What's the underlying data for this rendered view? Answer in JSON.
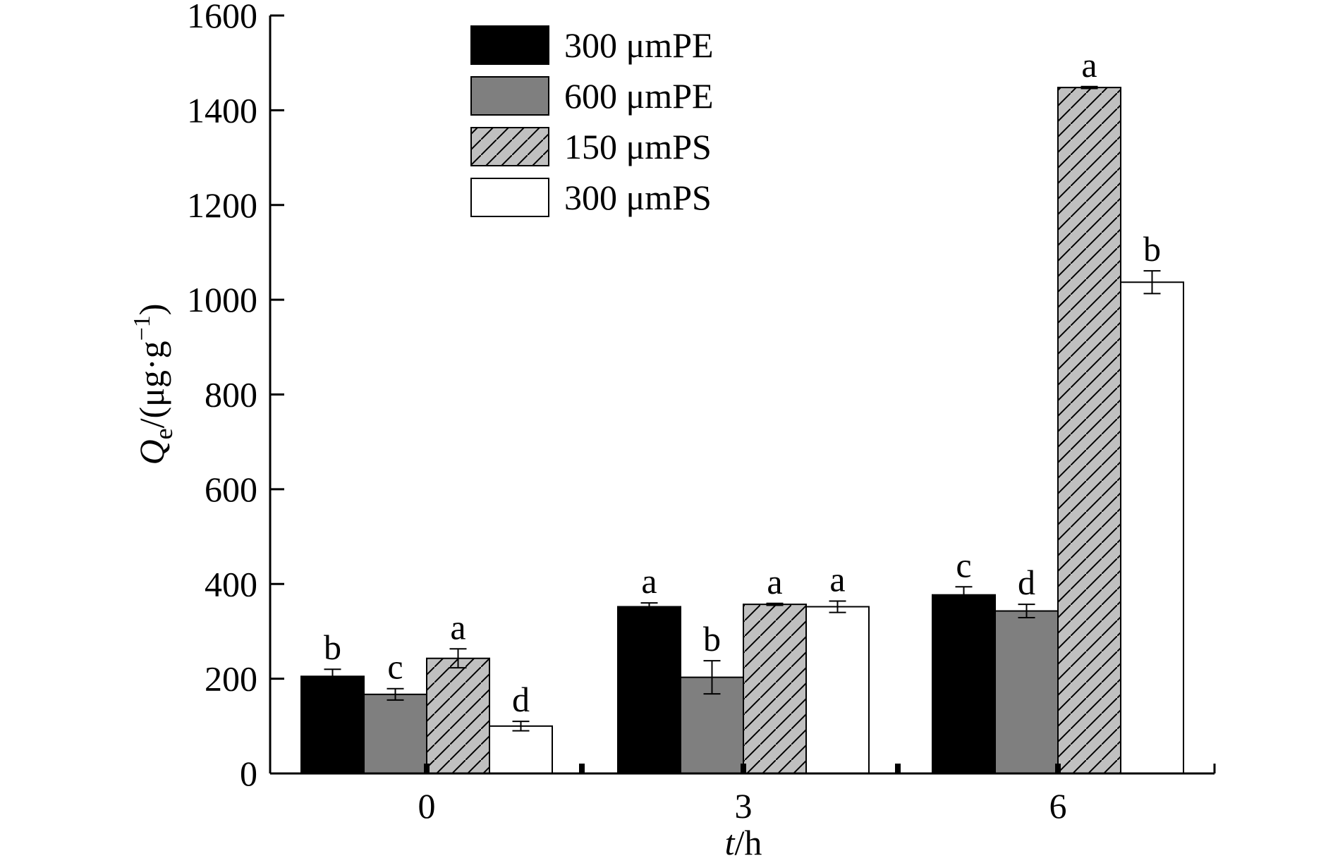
{
  "chart_data": {
    "type": "bar",
    "title": "",
    "xlabel": {
      "var": "t",
      "unit": "/h"
    },
    "ylabel": {
      "var": "Q",
      "sub": "e",
      "unit_open": "/(μg·g",
      "sup": "−1",
      "unit_close": ")"
    },
    "ylim": [
      0,
      1600
    ],
    "yticks": [
      0,
      200,
      400,
      600,
      800,
      1000,
      1200,
      1400,
      1600
    ],
    "categories": [
      "0",
      "3",
      "6"
    ],
    "legend_position": "top-left",
    "grid": false,
    "series": [
      {
        "name": "300 μmPE",
        "fill": "#000000",
        "pattern": "solid",
        "values": [
          205,
          352,
          377
        ],
        "errors": [
          15,
          8,
          17
        ],
        "letters": [
          "b",
          "a",
          "c"
        ]
      },
      {
        "name": "600 μmPE",
        "fill": "#7f7f7f",
        "pattern": "solid",
        "values": [
          167,
          203,
          343
        ],
        "errors": [
          12,
          35,
          14
        ],
        "letters": [
          "c",
          "b",
          "d"
        ]
      },
      {
        "name": "150 μmPS",
        "fill": "#c0c0c0",
        "pattern": "hatch",
        "values": [
          243,
          357,
          1448
        ],
        "errors": [
          20,
          2,
          2
        ],
        "letters": [
          "a",
          "a",
          "a"
        ]
      },
      {
        "name": "300 μmPS",
        "fill": "#ffffff",
        "pattern": "solid",
        "values": [
          100,
          352,
          1037
        ],
        "errors": [
          10,
          12,
          24
        ],
        "letters": [
          "d",
          "a",
          "b"
        ]
      }
    ]
  }
}
